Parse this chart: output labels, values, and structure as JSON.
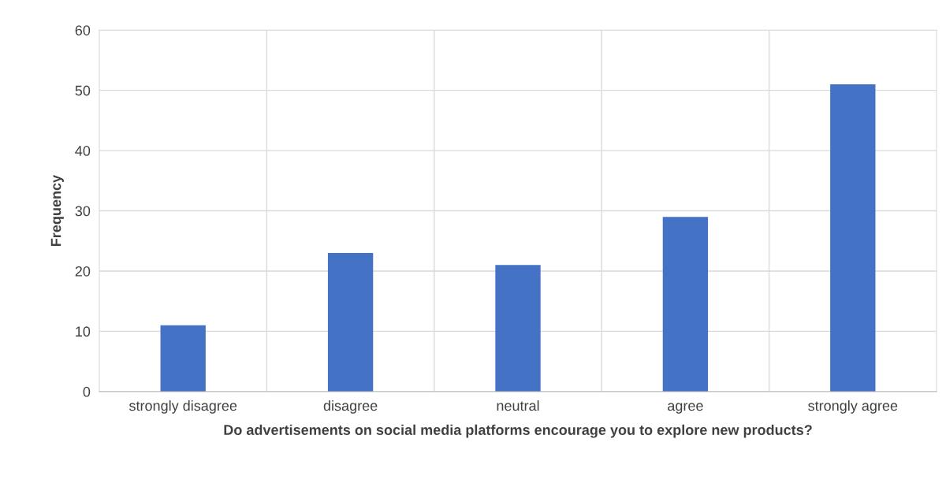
{
  "chart_data": {
    "type": "bar",
    "xlabel": "Do advertisements on social media platforms encourage you to explore new products?",
    "ylabel": "Frequency",
    "categories": [
      "strongly disagree",
      "disagree",
      "neutral",
      "agree",
      "strongly agree"
    ],
    "values": [
      11,
      23,
      21,
      29,
      51
    ],
    "color": "#4472c4",
    "ylim": [
      0,
      60
    ],
    "yticks": [
      0,
      10,
      20,
      30,
      40,
      50,
      60
    ],
    "grid": true
  }
}
